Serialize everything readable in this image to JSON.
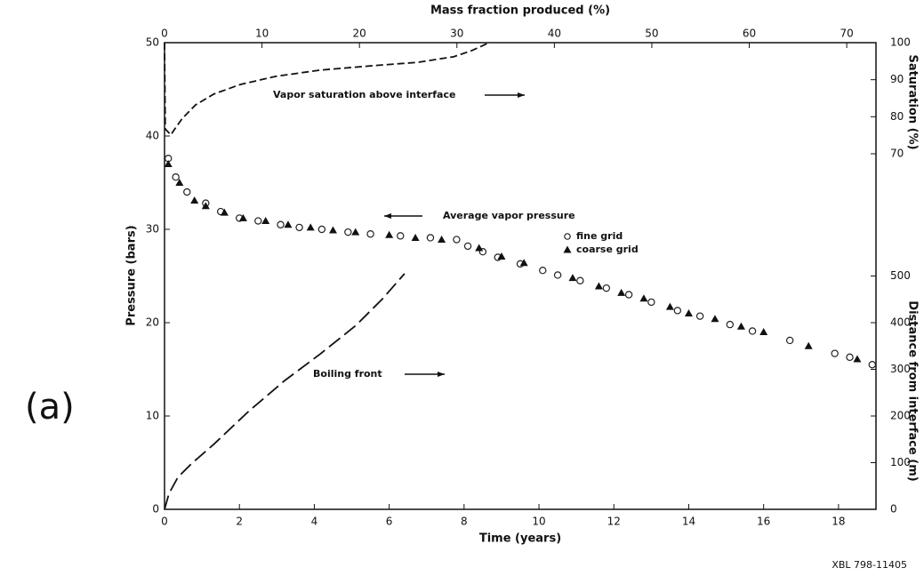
{
  "chart_data": {
    "type": "line",
    "panel_label": "(a)",
    "figure_id": "XBL 798-11405",
    "x_label": "Time (years)",
    "x2_label": "Mass fraction produced (%)",
    "y_label": "Pressure (bars)",
    "y2_label": "Saturation (%)",
    "y3_label": "Distance from interface (m)",
    "xlim": [
      0,
      19
    ],
    "xticks": [
      0,
      2,
      4,
      6,
      8,
      10,
      12,
      14,
      16,
      18
    ],
    "x2lim": [
      0,
      73
    ],
    "x2ticks": [
      0,
      10,
      20,
      30,
      40,
      50,
      60,
      70
    ],
    "ylim": [
      0,
      50
    ],
    "yticks": [
      0,
      10,
      20,
      30,
      40,
      50
    ],
    "y2lim": [
      -26,
      100
    ],
    "y2ticks": [
      70,
      80,
      90,
      100
    ],
    "y3lim": [
      0,
      1000
    ],
    "y3ticks": [
      0,
      100,
      200,
      300,
      400,
      500
    ],
    "annotations": [
      "Vapor saturation above interface",
      "Average vapor pressure",
      "Boiling front"
    ],
    "series": [
      {
        "name": "fine grid",
        "marker": "circle",
        "color": "#222",
        "x": [
          0.1,
          0.3,
          0.6,
          1.1,
          1.5,
          2.0,
          2.5,
          3.1,
          3.6,
          4.2,
          4.9,
          5.5,
          6.3,
          7.1,
          7.8,
          8.1,
          8.5,
          8.9,
          9.5,
          10.1,
          10.5,
          11.1,
          11.8,
          12.4,
          13.0,
          13.7,
          14.3,
          15.1,
          15.7,
          16.7,
          17.9,
          18.3,
          18.9
        ],
        "values": [
          37.6,
          35.6,
          34.0,
          32.8,
          31.9,
          31.2,
          30.9,
          30.5,
          30.2,
          30.0,
          29.7,
          29.5,
          29.3,
          29.1,
          28.9,
          28.2,
          27.6,
          27.0,
          26.3,
          25.6,
          25.1,
          24.5,
          23.7,
          23.0,
          22.2,
          21.3,
          20.7,
          19.8,
          19.1,
          18.1,
          16.7,
          16.3,
          15.5
        ]
      },
      {
        "name": "coarse grid",
        "marker": "triangle",
        "color": "#111",
        "x": [
          0.1,
          0.4,
          0.8,
          1.1,
          1.6,
          2.1,
          2.7,
          3.3,
          3.9,
          4.5,
          5.1,
          6.0,
          6.7,
          7.4,
          8.4,
          9.0,
          9.6,
          10.9,
          11.6,
          12.2,
          12.8,
          13.5,
          14.0,
          14.7,
          15.4,
          16.0,
          17.2,
          18.5
        ],
        "values": [
          37.0,
          35.0,
          33.1,
          32.5,
          31.8,
          31.2,
          30.9,
          30.5,
          30.2,
          29.9,
          29.7,
          29.4,
          29.1,
          28.9,
          28.0,
          27.1,
          26.4,
          24.8,
          23.9,
          23.2,
          22.6,
          21.7,
          21.0,
          20.4,
          19.6,
          19.0,
          17.5,
          16.1
        ]
      },
      {
        "axis": "y2",
        "line": "dashed",
        "color": "#111",
        "x": [
          0,
          0.02,
          0.17,
          0.26,
          0.48,
          0.83,
          1.31,
          2.02,
          2.97,
          4.16,
          5.58,
          6.77,
          7.72,
          8.19,
          8.67
        ],
        "values": [
          100,
          76.7,
          75.1,
          76.5,
          79.6,
          83.2,
          86.1,
          88.7,
          90.9,
          92.6,
          93.8,
          94.7,
          96.2,
          97.8,
          100
        ]
      },
      {
        "axis": "y3",
        "line": "longdash",
        "color": "#111",
        "x": [
          0,
          0.12,
          0.36,
          0.71,
          1.31,
          2.26,
          3.21,
          4.16,
          5.11,
          5.82,
          6.41
        ],
        "values": [
          0,
          34,
          69,
          97,
          139,
          211,
          276,
          333,
          394,
          451,
          505
        ]
      }
    ]
  }
}
